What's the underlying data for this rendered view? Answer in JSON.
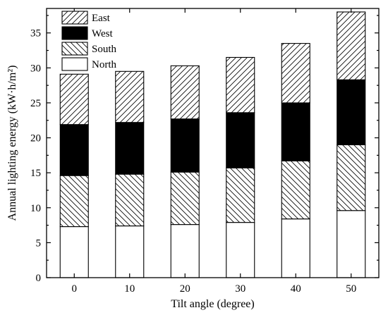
{
  "chart_data": {
    "type": "bar",
    "stacked": true,
    "categories": [
      "0",
      "10",
      "20",
      "30",
      "40",
      "50"
    ],
    "series": [
      {
        "name": "North",
        "values": [
          7.3,
          7.4,
          7.6,
          7.9,
          8.4,
          9.6
        ],
        "pattern": "solid-white"
      },
      {
        "name": "South",
        "values": [
          7.3,
          7.4,
          7.5,
          7.8,
          8.3,
          9.4
        ],
        "pattern": "hatch-down"
      },
      {
        "name": "West",
        "values": [
          7.3,
          7.4,
          7.6,
          7.9,
          8.3,
          9.3
        ],
        "pattern": "solid-black"
      },
      {
        "name": "East",
        "values": [
          7.2,
          7.3,
          7.6,
          7.9,
          8.5,
          9.7
        ],
        "pattern": "hatch-up"
      }
    ],
    "xlabel": "Tilt angle (degree)",
    "ylabel": "Annual lighting energy (kW·h/m²)",
    "ylim": [
      0,
      38.5
    ],
    "yticks": [
      0,
      5,
      10,
      15,
      20,
      25,
      30,
      35
    ],
    "legend_order": [
      "East",
      "West",
      "South",
      "North"
    ],
    "legend_position": "top-left",
    "grid": false
  }
}
